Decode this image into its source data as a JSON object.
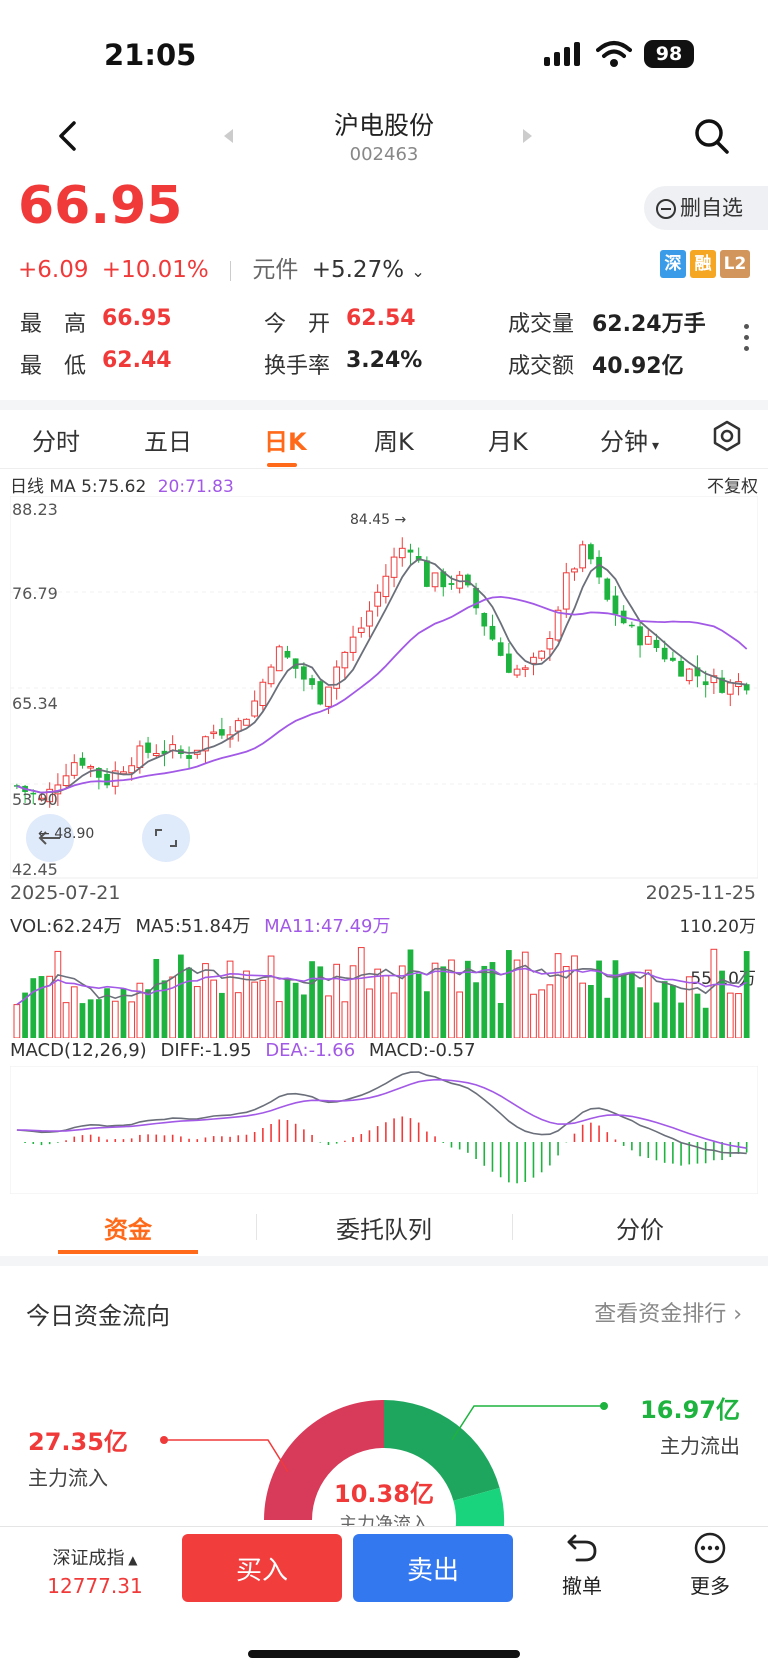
{
  "status_bar": {
    "time": "21:05",
    "battery": "98"
  },
  "header": {
    "name": "沪电股份",
    "code": "002463"
  },
  "quote": {
    "price": "66.95",
    "change": "+6.09",
    "change_pct": "+10.01%",
    "sector": "元件",
    "sector_pct": "+5.27%",
    "delete_fav": "删自选",
    "tags": [
      "深",
      "融",
      "L2"
    ],
    "high_label": "最　高",
    "high": "66.95",
    "low_label": "最　低",
    "low": "62.44",
    "open_label": "今　开",
    "open": "62.54",
    "turnover_label": "换手率",
    "turnover": "3.24%",
    "volume_label": "成交量",
    "volume": "62.24万手",
    "amount_label": "成交额",
    "amount": "40.92亿"
  },
  "period_tabs": [
    "分时",
    "五日",
    "日K",
    "周K",
    "月K",
    "分钟"
  ],
  "kline": {
    "legend_prefix": "日线 MA 5:75.62",
    "ma20": "20:71.83",
    "adjust": "不复权",
    "y_ticks": [
      "88.23",
      "76.79",
      "65.34",
      "53.90",
      "42.45"
    ],
    "max_label": "84.45",
    "min_label": "48.90",
    "start_date": "2025-07-21",
    "end_date": "2025-11-25"
  },
  "volume": {
    "vol": "VOL:62.24万",
    "ma5": "MA5:51.84万",
    "ma11": "MA11:47.49万",
    "max": "110.20万",
    "mid": "55.10万"
  },
  "macd": {
    "title": "MACD(12,26,9)",
    "diff": "DIFF:-1.95",
    "dea": "DEA:-1.66",
    "macd": "MACD:-0.57"
  },
  "bottom_tabs": [
    "资金",
    "委托队列",
    "分价"
  ],
  "fund_flow": {
    "title": "今日资金流向",
    "rank_link": "查看资金排行 ›",
    "inflow": "27.35亿",
    "inflow_label": "主力流入",
    "outflow": "16.97亿",
    "outflow_label": "主力流出",
    "net": "10.38亿",
    "net_label": "主力净流入",
    "inflow_share": 0.617
  },
  "bottom_bar": {
    "index_name": "深证成指",
    "index_value": "12777.31",
    "buy": "买入",
    "sell": "卖出",
    "cancel": "撤单",
    "more": "更多"
  },
  "colors": {
    "up": "#f03a3a",
    "down": "#1db33e",
    "accent": "#ff6a1a",
    "ma20": "#a259e6"
  }
}
